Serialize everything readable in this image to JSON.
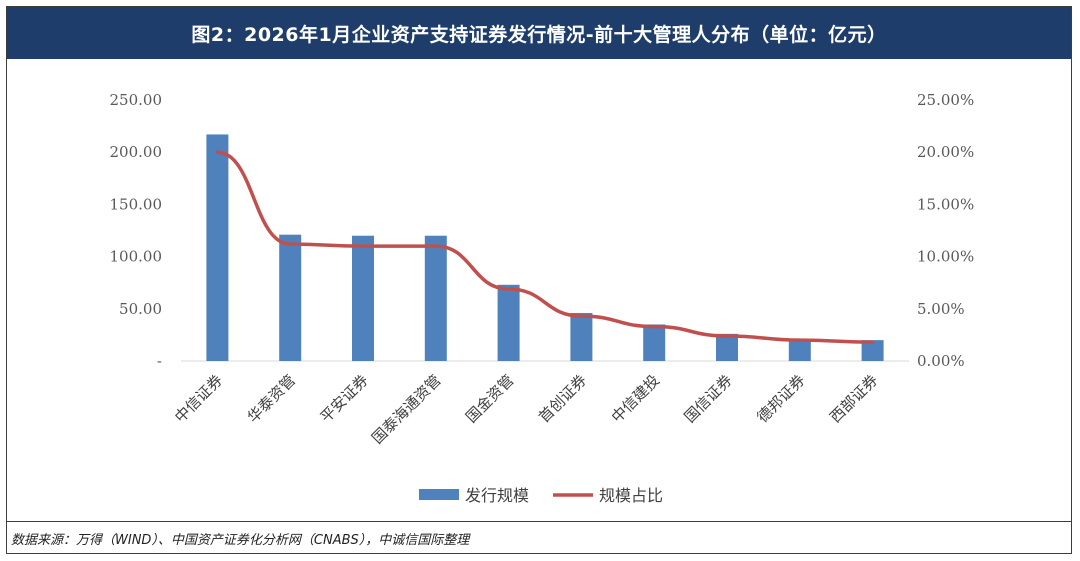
{
  "header": {
    "title": "图2：2026年1月企业资产支持证券发行情况-前十大管理人分布（单位：亿元）"
  },
  "footer": {
    "source": "数据来源：万得（WIND）、中国资产证券化分析网（CNABS），中诚信国际整理"
  },
  "colors": {
    "title_bg": "#1f3d6b",
    "bar": "#4f81bd",
    "line": "#c0504d"
  },
  "chart_data": {
    "type": "bar",
    "categories": [
      "中信证券",
      "华泰资管",
      "平安证券",
      "国泰海通资管",
      "国金资管",
      "首创证券",
      "中信建投",
      "国信证券",
      "德邦证券",
      "西部证券"
    ],
    "series": [
      {
        "name": "发行规模",
        "type": "bar",
        "axis": "left",
        "values": [
          217,
          121,
          120,
          120,
          73,
          46,
          35,
          26,
          21,
          20
        ]
      },
      {
        "name": "规模占比",
        "type": "line",
        "axis": "right",
        "values": [
          20.0,
          11.2,
          11.0,
          11.0,
          6.9,
          4.3,
          3.3,
          2.4,
          2.0,
          1.8
        ]
      }
    ],
    "y_left": {
      "ylim": [
        0,
        250
      ],
      "ticks": [
        "-",
        "50.00",
        "100.00",
        "150.00",
        "200.00",
        "250.00"
      ]
    },
    "y_right": {
      "ylim": [
        0,
        25
      ],
      "ticks": [
        "0.00%",
        "5.00%",
        "10.00%",
        "15.00%",
        "20.00%",
        "25.00%"
      ]
    },
    "grid": false,
    "legend": "bottom-center"
  }
}
